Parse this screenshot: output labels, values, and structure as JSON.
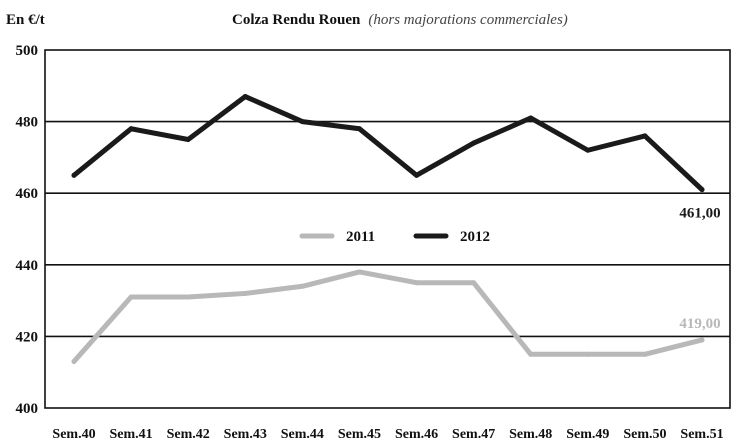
{
  "header": {
    "unit": "En €/t",
    "title": "Colza Rendu Rouen",
    "subtitle": "(hors majorations commerciales)"
  },
  "chart_data": {
    "type": "line",
    "title": "Colza Rendu Rouen",
    "subtitle": "(hors majorations commerciales)",
    "ylabel": "En €/t",
    "xlabel": "",
    "ylim": [
      400,
      500
    ],
    "yticks": [
      400,
      420,
      440,
      460,
      480,
      500
    ],
    "grid": "horizontal",
    "legend_position": "center",
    "categories": [
      "Sem.40",
      "Sem.41",
      "Sem.42",
      "Sem.43",
      "Sem.44",
      "Sem.45",
      "Sem.46",
      "Sem.47",
      "Sem.48",
      "Sem.49",
      "Sem.50",
      "Sem.51"
    ],
    "series": [
      {
        "name": "2011",
        "color": "#b8b8b8",
        "values": [
          413,
          431,
          431,
          432,
          434,
          438,
          435,
          435,
          415,
          415,
          415,
          419
        ],
        "end_label": "419,00"
      },
      {
        "name": "2012",
        "color": "#1a1a1a",
        "values": [
          465,
          478,
          475,
          487,
          480,
          478,
          465,
          474,
          481,
          472,
          476,
          461
        ],
        "end_label": "461,00"
      }
    ]
  }
}
